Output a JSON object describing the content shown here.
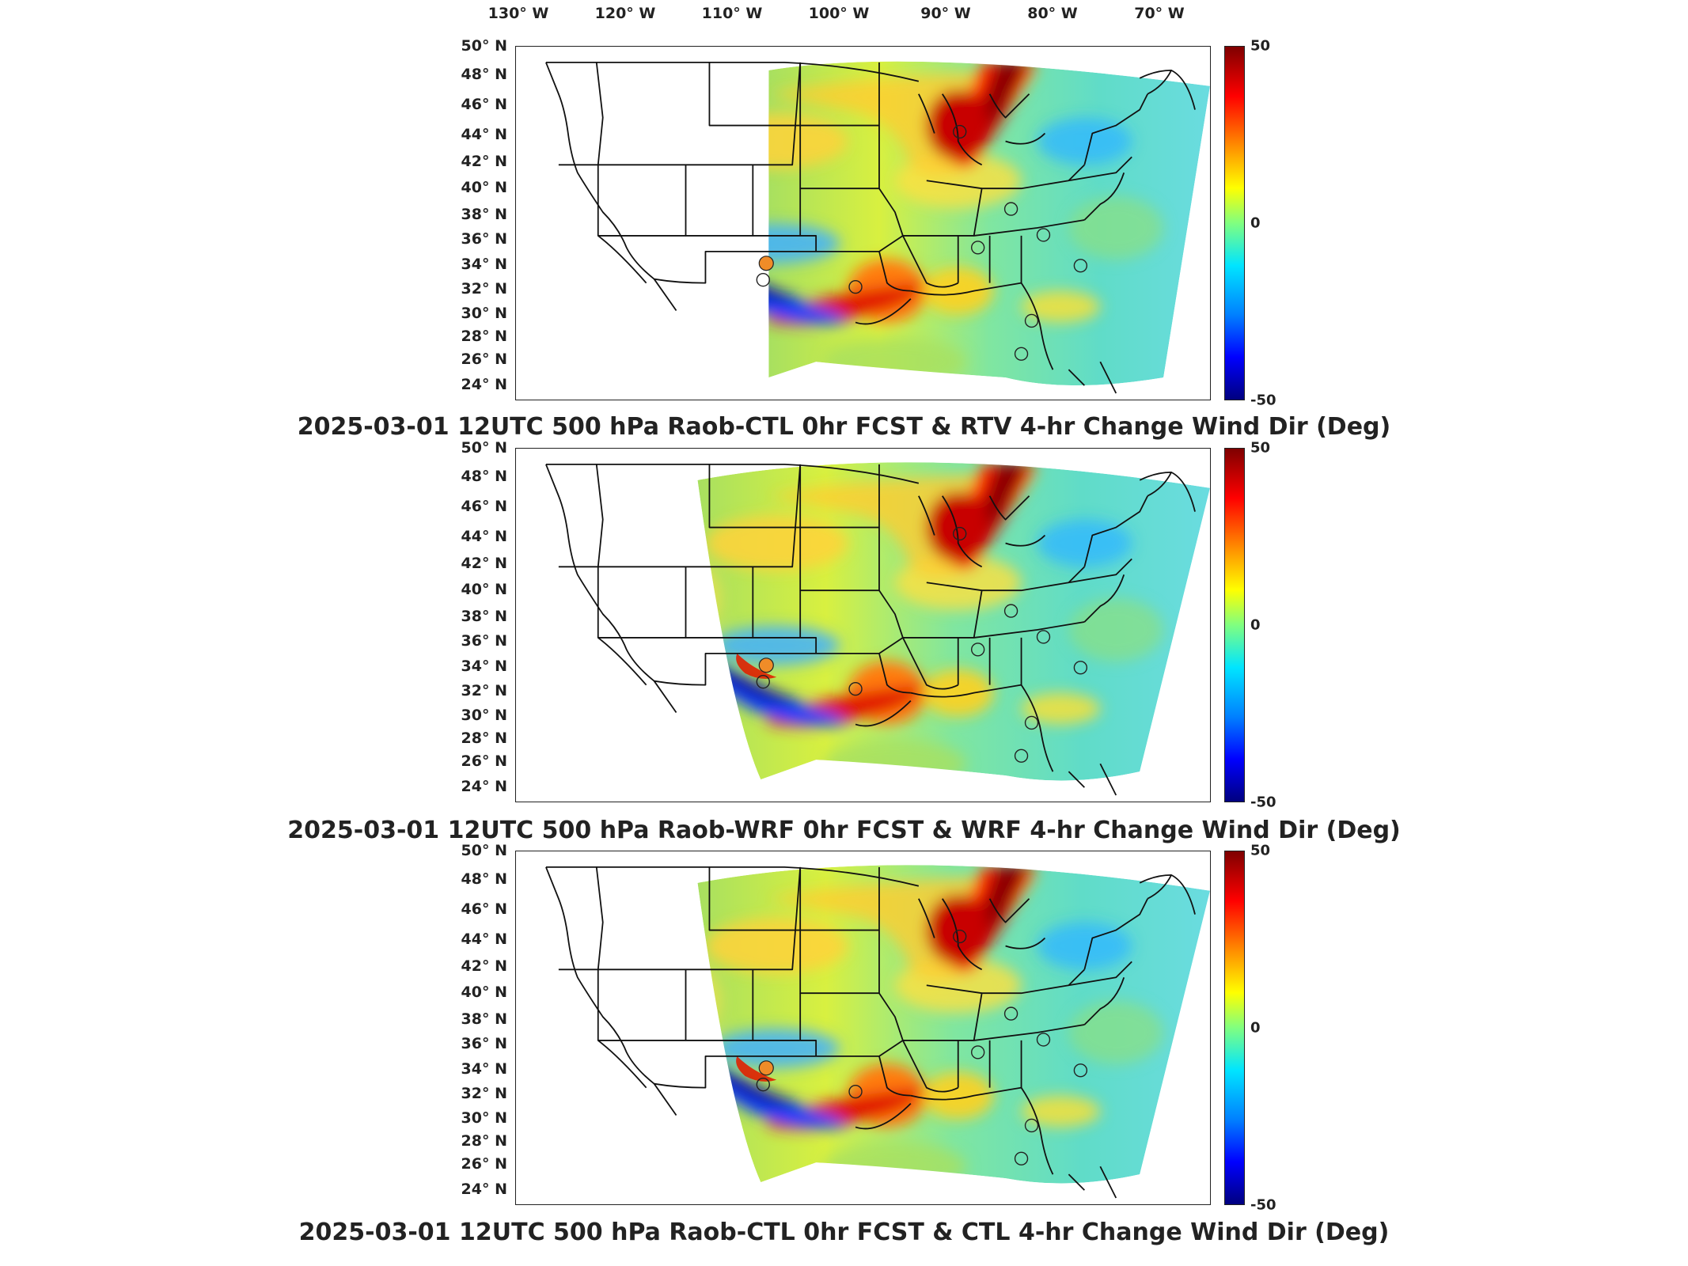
{
  "lon_labels": [
    "130° W",
    "120° W",
    "110° W",
    "100° W",
    "90° W",
    "80° W",
    "70° W"
  ],
  "lat_labels": [
    "50° N",
    "48° N",
    "46° N",
    "44° N",
    "42° N",
    "40° N",
    "38° N",
    "36° N",
    "34° N",
    "32° N",
    "30° N",
    "28° N",
    "26° N",
    "24° N"
  ],
  "colorbar": {
    "max": "50",
    "mid": "0",
    "min": "-50",
    "colors": [
      "#7f0000",
      "#ff0000",
      "#ff8c00",
      "#ffff00",
      "#80ff80",
      "#00e5ff",
      "#0080ff",
      "#0000ff",
      "#00007f"
    ]
  },
  "panels": [
    {
      "caption": "2025-03-01 12UTC 500 hPa Raob-CTL 0hr FCST & RTV 4-hr Change Wind Dir (Deg)"
    },
    {
      "caption": "2025-03-01 12UTC 500 hPa Raob-WRF 0hr FCST & WRF 4-hr Change Wind Dir (Deg)"
    },
    {
      "caption": "2025-03-01 12UTC 500 hPa Raob-CTL 0hr FCST & CTL 4-hr Change Wind Dir (Deg)"
    }
  ],
  "station_marker_color": "#f08c28"
}
